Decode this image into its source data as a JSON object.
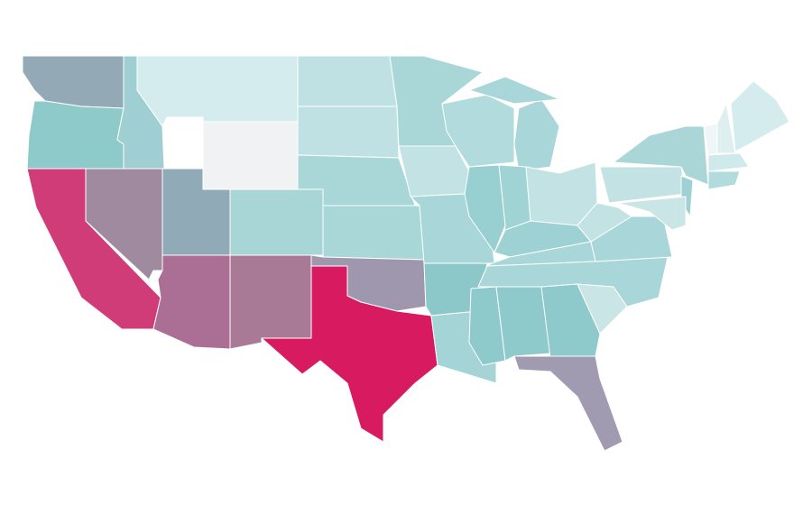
{
  "map": {
    "region_colors": [
      "#94a9b6",
      "#8ecaca",
      "#cf3c78",
      "#a08aa0",
      "#9fcfd3",
      "#d4eced",
      "#f0f2f3",
      "#91aab7",
      "#a8d6d6",
      "#ab6f95",
      "#a97a96",
      "#bfe1e3",
      "#bfe1e3",
      "#a9d7d8",
      "#a9d7d8",
      "#9f97ae",
      "#d81b60",
      "#a9d7d8",
      "#c2e2e3",
      "#a9d6d8",
      "#8cc8ca",
      "#a5d4d6",
      "#b2dbdd",
      "#98cfd1",
      "#a9d6d8",
      "#a9d6d8",
      "#a0d3d4",
      "#c2e2e3",
      "#9ed1d3",
      "#a9d6d8",
      "#8ec9cb",
      "#8ec9cb",
      "#8ec9cb",
      "#a09bb1",
      "#c9e5e6",
      "#a9d6d8",
      "#a9d6d8",
      "#c2e2e3",
      "#c2e2e3",
      "#aad6d8",
      "#9ed1d3",
      "#c9e5e6",
      "#eef6f7",
      "#dfeff0",
      "#d4eced",
      "#d0e9ea",
      "#b2dbdd"
    ]
  }
}
